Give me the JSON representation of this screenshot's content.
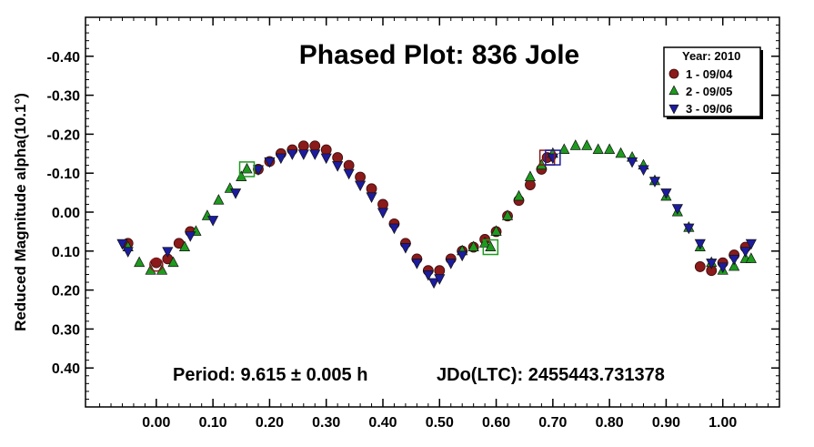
{
  "chart_data": {
    "type": "scatter",
    "title": "Phased Plot: 836 Jole",
    "xlabel": "",
    "ylabel": "Reduced Magnitude alpha(10.1°)",
    "xlim": [
      -0.125,
      1.1
    ],
    "ylim": [
      0.5,
      -0.5
    ],
    "y_inverted": true,
    "x_ticks": [
      "0.00",
      "0.10",
      "0.20",
      "0.30",
      "0.40",
      "0.50",
      "0.60",
      "0.70",
      "0.80",
      "0.90",
      "1.00"
    ],
    "x_tick_values": [
      0,
      0.1,
      0.2,
      0.3,
      0.4,
      0.5,
      0.6,
      0.7,
      0.8,
      0.9,
      1.0
    ],
    "y_ticks": [
      "-0.40",
      "-0.30",
      "-0.20",
      "-0.10",
      "0.00",
      "0.10",
      "0.20",
      "0.30",
      "0.40"
    ],
    "y_tick_values": [
      -0.4,
      -0.3,
      -0.2,
      -0.1,
      0,
      0.1,
      0.2,
      0.3,
      0.4
    ],
    "grid": false,
    "legend": {
      "title": "Year: 2010",
      "placement": "top-right",
      "entries": [
        {
          "label": "1 - 09/04",
          "marker": "circle",
          "color": "#8b1a1a"
        },
        {
          "label": "2 - 09/05",
          "marker": "triangle-up",
          "color": "#1f9a1f"
        },
        {
          "label": "3 - 09/06",
          "marker": "triangle-down",
          "color": "#1c1c9e"
        }
      ]
    },
    "annotations": {
      "period": "Period: 9.615 ± 0.005 h",
      "epoch": "JDo(LTC): 2455443.731378"
    },
    "series": [
      {
        "name": "1 - 09/04",
        "marker": "circle",
        "color": "#8b1a1a",
        "x": [
          -0.05,
          0.0,
          0.02,
          0.04,
          0.06,
          0.18,
          0.2,
          0.22,
          0.24,
          0.26,
          0.28,
          0.3,
          0.32,
          0.34,
          0.36,
          0.38,
          0.4,
          0.42,
          0.44,
          0.46,
          0.48,
          0.5,
          0.52,
          0.54,
          0.56,
          0.58,
          0.6,
          0.62,
          0.64,
          0.66,
          0.68,
          0.69,
          0.96,
          0.98,
          1.0,
          1.02,
          1.04
        ],
        "y": [
          0.08,
          0.13,
          0.12,
          0.08,
          0.05,
          -0.11,
          -0.13,
          -0.15,
          -0.16,
          -0.17,
          -0.17,
          -0.16,
          -0.14,
          -0.12,
          -0.09,
          -0.06,
          -0.02,
          0.03,
          0.08,
          0.12,
          0.15,
          0.15,
          0.12,
          0.1,
          0.09,
          0.07,
          0.05,
          0.01,
          -0.03,
          -0.07,
          -0.11,
          -0.14,
          0.14,
          0.15,
          0.13,
          0.11,
          0.09
        ]
      },
      {
        "name": "2 - 09/05",
        "marker": "triangle-up",
        "color": "#1f9a1f",
        "x": [
          -0.05,
          -0.03,
          -0.01,
          0.01,
          0.03,
          0.05,
          0.07,
          0.09,
          0.11,
          0.13,
          0.15,
          0.16,
          0.54,
          0.56,
          0.58,
          0.59,
          0.6,
          0.62,
          0.64,
          0.66,
          0.68,
          0.7,
          0.72,
          0.74,
          0.76,
          0.78,
          0.8,
          0.82,
          0.84,
          0.86,
          0.88,
          0.9,
          0.92,
          0.94,
          0.96,
          0.98,
          1.0,
          1.02,
          1.04,
          1.05
        ],
        "y": [
          0.09,
          0.13,
          0.15,
          0.15,
          0.13,
          0.09,
          0.05,
          0.01,
          -0.03,
          -0.06,
          -0.09,
          -0.11,
          0.1,
          0.09,
          0.08,
          0.09,
          0.05,
          0.01,
          -0.04,
          -0.09,
          -0.12,
          -0.15,
          -0.16,
          -0.17,
          -0.17,
          -0.16,
          -0.16,
          -0.15,
          -0.14,
          -0.12,
          -0.08,
          -0.04,
          0.0,
          0.04,
          0.09,
          0.13,
          0.15,
          0.14,
          0.12,
          0.12
        ]
      },
      {
        "name": "3 - 09/06",
        "marker": "triangle-down",
        "color": "#1c1c9e",
        "x": [
          -0.06,
          -0.05,
          0.02,
          0.06,
          0.1,
          0.14,
          0.18,
          0.2,
          0.22,
          0.24,
          0.26,
          0.28,
          0.3,
          0.32,
          0.34,
          0.36,
          0.38,
          0.4,
          0.42,
          0.44,
          0.46,
          0.48,
          0.49,
          0.5,
          0.52,
          0.54,
          0.7,
          0.84,
          0.86,
          0.88,
          0.9,
          0.92,
          0.94,
          0.96,
          0.98,
          1.0,
          1.02,
          1.04,
          1.05
        ],
        "y": [
          0.08,
          0.1,
          0.1,
          0.06,
          0.02,
          -0.05,
          -0.11,
          -0.13,
          -0.14,
          -0.15,
          -0.15,
          -0.15,
          -0.14,
          -0.12,
          -0.1,
          -0.07,
          -0.04,
          0.0,
          0.04,
          0.09,
          0.13,
          0.16,
          0.18,
          0.17,
          0.13,
          0.11,
          -0.14,
          -0.13,
          -0.11,
          -0.08,
          -0.05,
          -0.01,
          0.04,
          0.08,
          0.13,
          0.14,
          0.12,
          0.1,
          0.08
        ]
      }
    ],
    "highlighted_points": [
      {
        "series": "1 - 09/04",
        "x": 0.69,
        "y": -0.14
      },
      {
        "series": "2 - 09/05",
        "x": 0.16,
        "y": -0.11
      },
      {
        "series": "2 - 09/05",
        "x": 0.59,
        "y": 0.09
      },
      {
        "series": "3 - 09/06",
        "x": 0.7,
        "y": -0.14
      }
    ]
  }
}
